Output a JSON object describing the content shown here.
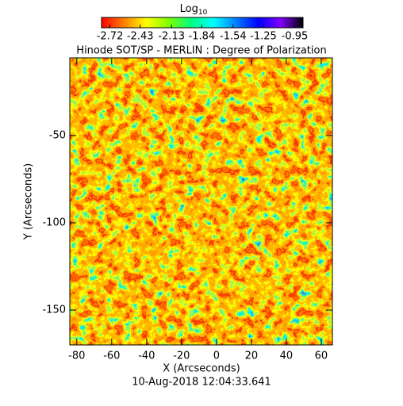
{
  "chart_data": {
    "type": "heatmap",
    "title": "Hinode SOT/SP - MERLIN : Degree of Polarization",
    "x_label": "X (Arcseconds)",
    "y_label": "Y (Arcseconds)",
    "footer": "10-Aug-2018 12:04:33.641",
    "xlim": [
      -84,
      66.4
    ],
    "xticks": [
      -80,
      -60,
      -40,
      -20,
      0,
      20,
      40,
      60
    ],
    "ylim": [
      -170,
      -5.5
    ],
    "yticks": [
      -150,
      -100,
      -50
    ],
    "colorbar": {
      "label": "Log",
      "label_sub": "10",
      "clim": [
        -2.8,
        -0.87
      ],
      "ticks": [
        -2.72,
        -2.43,
        -2.13,
        -1.84,
        -1.54,
        -1.25,
        -0.95
      ],
      "colors": [
        "#ff0000",
        "#ff7f00",
        "#ffff00",
        "#7fff00",
        "#00ff7f",
        "#00ffff",
        "#007fff",
        "#0000ff",
        "#7f00ff",
        "#000000"
      ]
    }
  }
}
